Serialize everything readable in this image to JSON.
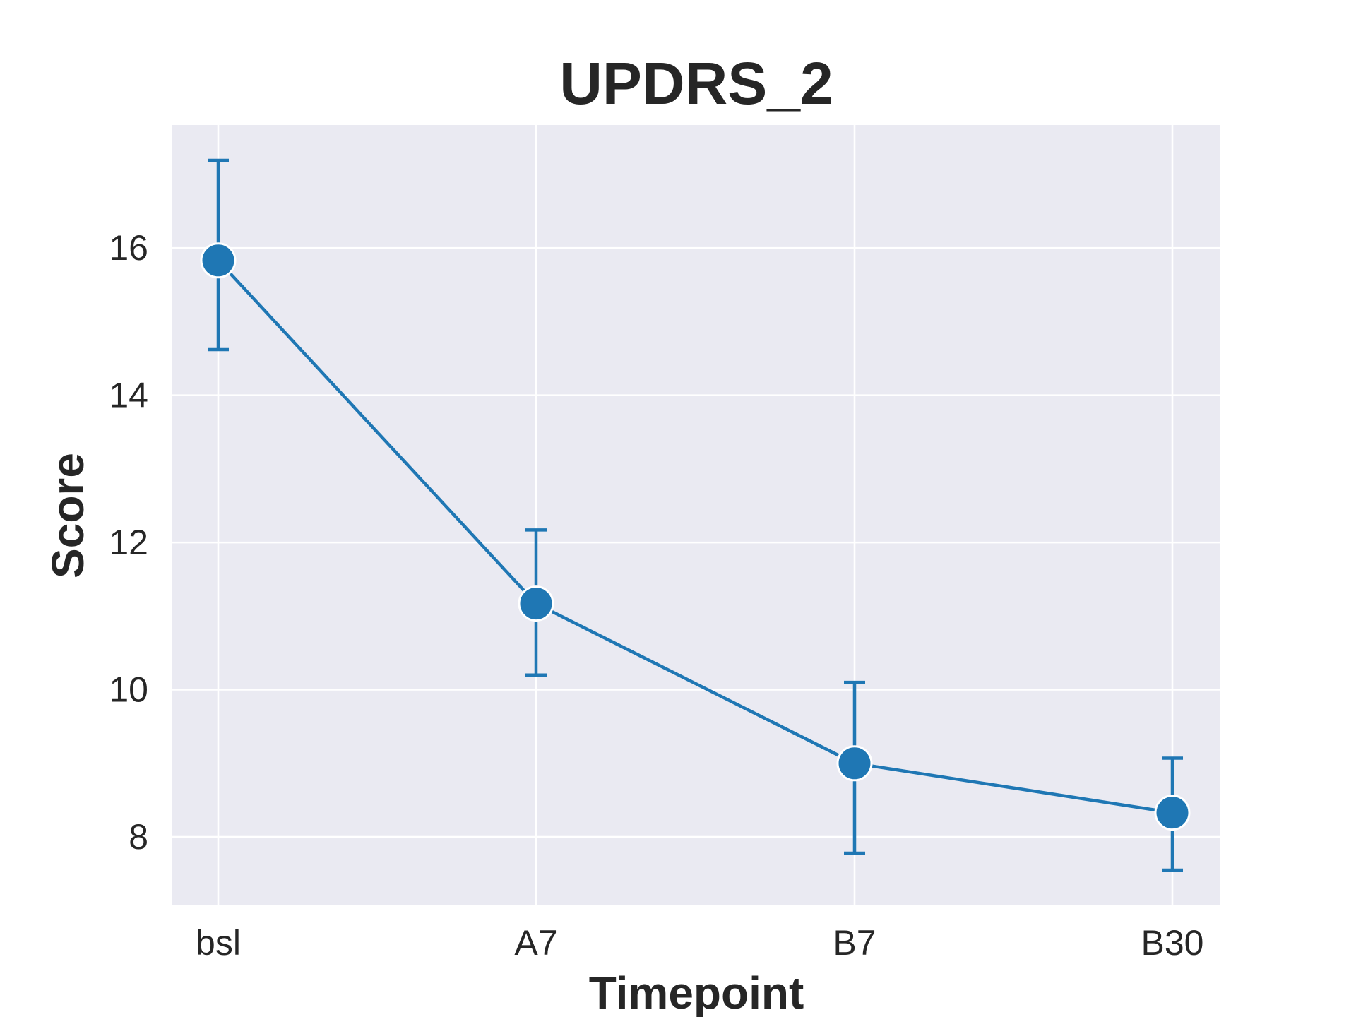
{
  "chart_data": {
    "type": "line",
    "title": "UPDRS_2",
    "xlabel": "Timepoint",
    "ylabel": "Score",
    "categories": [
      "bsl",
      "A7",
      "B7",
      "B30"
    ],
    "series": [
      {
        "values": [
          15.83,
          11.17,
          9.0,
          8.33
        ],
        "error_low": [
          14.62,
          10.2,
          7.78,
          7.55
        ],
        "error_high": [
          17.19,
          12.17,
          10.1,
          9.07
        ]
      }
    ],
    "yticks": [
      8,
      10,
      12,
      14,
      16
    ],
    "ytick_labels": [
      "8",
      "10",
      "12",
      "14",
      "16"
    ],
    "ylim": [
      7.07,
      17.67
    ],
    "grid": true,
    "legend": "none",
    "colors": {
      "line": "#1f77b4",
      "marker_edge": "#ffffff",
      "plot_background": "#eaeaf2",
      "grid": "#ffffff",
      "text": "#262626"
    }
  }
}
